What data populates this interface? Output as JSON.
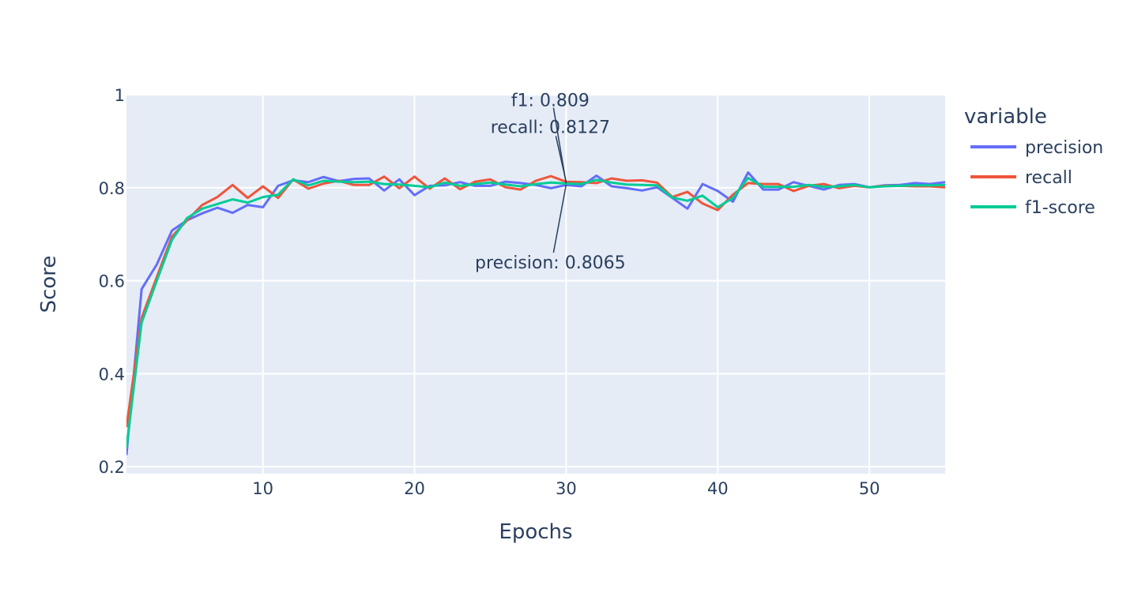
{
  "chart_data": {
    "type": "line",
    "xlabel": "Epochs",
    "ylabel": "Score",
    "xlim": [
      1,
      55
    ],
    "ylim": [
      0.185,
      1.0
    ],
    "xticks": [
      10,
      20,
      30,
      40,
      50
    ],
    "yticks": [
      0.2,
      0.4,
      0.6,
      0.8,
      1
    ],
    "xtick_labels": [
      "10",
      "20",
      "30",
      "40",
      "50"
    ],
    "ytick_labels": [
      "0.2",
      "0.4",
      "0.6",
      "0.8",
      "1"
    ],
    "grid": true,
    "plot_background": "#E5ECF6",
    "legend": {
      "title": "variable",
      "placement": "right"
    },
    "x": [
      1,
      2,
      3,
      4,
      5,
      6,
      7,
      8,
      9,
      10,
      11,
      12,
      13,
      14,
      15,
      16,
      17,
      18,
      19,
      20,
      21,
      22,
      23,
      24,
      25,
      26,
      27,
      28,
      29,
      30,
      31,
      32,
      33,
      34,
      35,
      36,
      37,
      38,
      39,
      40,
      41,
      42,
      43,
      44,
      45,
      46,
      47,
      48,
      49,
      50,
      51,
      52,
      53,
      54,
      55
    ],
    "series": [
      {
        "name": "precision",
        "color": "#636EFA",
        "values": [
          0.225,
          0.582,
          0.635,
          0.708,
          0.73,
          0.745,
          0.757,
          0.746,
          0.763,
          0.758,
          0.804,
          0.816,
          0.812,
          0.823,
          0.814,
          0.819,
          0.82,
          0.794,
          0.818,
          0.784,
          0.804,
          0.805,
          0.812,
          0.804,
          0.804,
          0.813,
          0.81,
          0.806,
          0.799,
          0.806,
          0.803,
          0.826,
          0.803,
          0.799,
          0.794,
          0.801,
          0.778,
          0.755,
          0.808,
          0.793,
          0.77,
          0.833,
          0.796,
          0.796,
          0.812,
          0.804,
          0.796,
          0.806,
          0.808,
          0.801,
          0.805,
          0.806,
          0.81,
          0.808,
          0.812
        ]
      },
      {
        "name": "recall",
        "color": "#EF553B",
        "values": [
          0.285,
          0.52,
          0.608,
          0.695,
          0.73,
          0.763,
          0.78,
          0.806,
          0.778,
          0.803,
          0.778,
          0.818,
          0.798,
          0.809,
          0.815,
          0.806,
          0.806,
          0.824,
          0.799,
          0.824,
          0.798,
          0.82,
          0.797,
          0.813,
          0.818,
          0.801,
          0.796,
          0.815,
          0.825,
          0.8127,
          0.812,
          0.81,
          0.82,
          0.815,
          0.816,
          0.811,
          0.78,
          0.791,
          0.766,
          0.752,
          0.785,
          0.81,
          0.808,
          0.808,
          0.793,
          0.804,
          0.808,
          0.799,
          0.804,
          0.801,
          0.804,
          0.804,
          0.803,
          0.803,
          0.801
        ]
      },
      {
        "name": "f1-score",
        "color": "#00CC96",
        "values": [
          0.24,
          0.51,
          0.6,
          0.688,
          0.735,
          0.755,
          0.765,
          0.775,
          0.768,
          0.78,
          0.785,
          0.818,
          0.805,
          0.815,
          0.813,
          0.812,
          0.813,
          0.808,
          0.807,
          0.804,
          0.801,
          0.811,
          0.804,
          0.808,
          0.811,
          0.807,
          0.803,
          0.808,
          0.811,
          0.809,
          0.808,
          0.817,
          0.811,
          0.807,
          0.806,
          0.805,
          0.779,
          0.772,
          0.783,
          0.758,
          0.778,
          0.821,
          0.802,
          0.802,
          0.802,
          0.806,
          0.802,
          0.803,
          0.806,
          0.801,
          0.803,
          0.804,
          0.805,
          0.805,
          0.806
        ]
      }
    ],
    "annotations": [
      {
        "text": "f1: 0.809",
        "x": 30,
        "y": 0.809
      },
      {
        "text": "recall: 0.8127",
        "x": 30,
        "y": 0.8127
      },
      {
        "text": "precision: 0.8065",
        "x": 30,
        "y": 0.8065
      }
    ]
  }
}
